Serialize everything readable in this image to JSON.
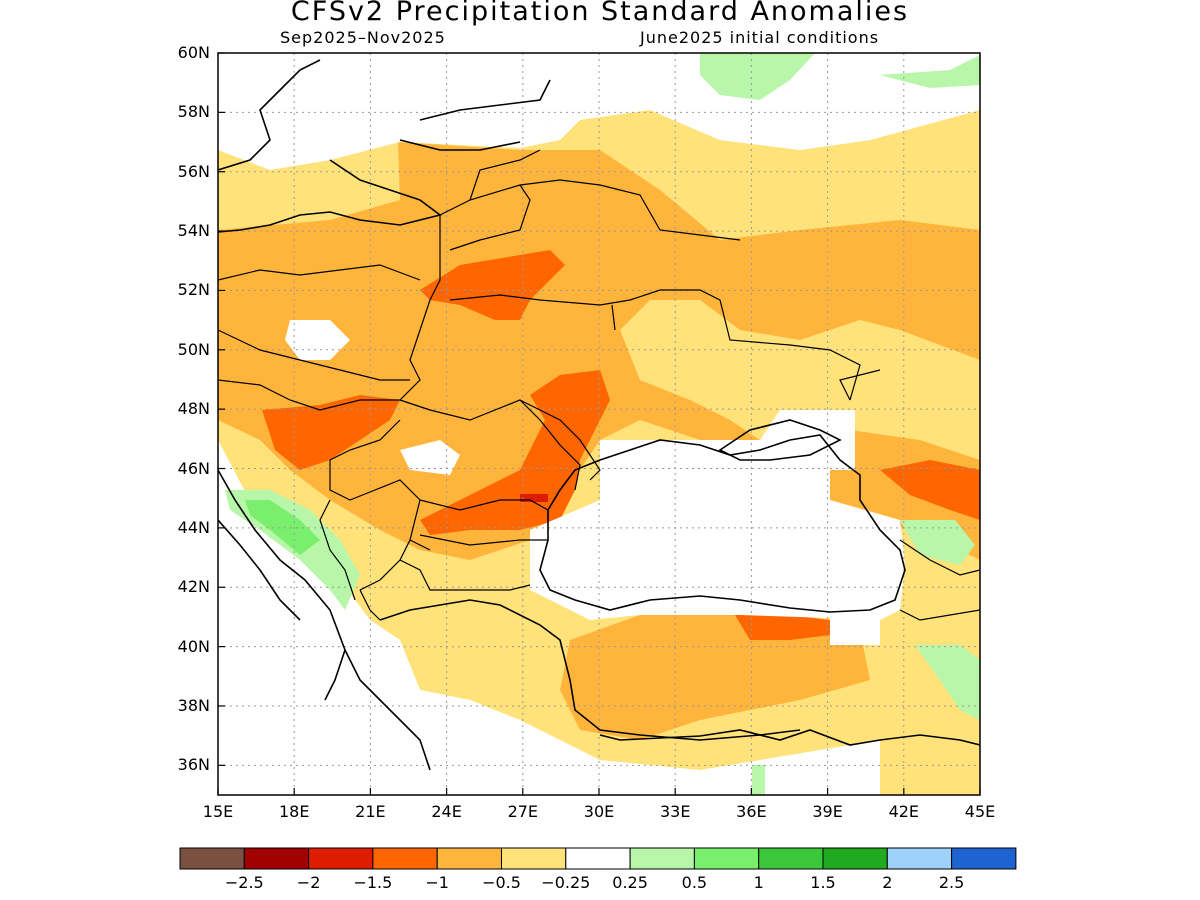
{
  "title": "CFSv2 Precipitation Standard Anomalies",
  "subtitle_period": "Sep2025–Nov2025",
  "subtitle_init": "June2025 initial conditions",
  "lat_labels": [
    "60N",
    "58N",
    "56N",
    "54N",
    "52N",
    "50N",
    "48N",
    "46N",
    "44N",
    "42N",
    "40N",
    "38N",
    "36N"
  ],
  "lon_labels": [
    "15E",
    "18E",
    "21E",
    "24E",
    "27E",
    "30E",
    "33E",
    "36E",
    "39E",
    "42E",
    "45E"
  ],
  "colorbar": {
    "labels": [
      "−2.5",
      "−2",
      "−1.5",
      "−1",
      "−0.5",
      "−0.25",
      "0.25",
      "0.5",
      "1",
      "1.5",
      "2",
      "2.5"
    ],
    "colors": [
      "#7a5040",
      "#a00000",
      "#dd1c00",
      "#ff6600",
      "#ffb43c",
      "#ffe27a",
      "#ffffff",
      "#b8f6aa",
      "#7aef6e",
      "#3ac83a",
      "#20aa20",
      "#9ed2fa",
      "#1e64d0"
    ]
  },
  "map_extent": {
    "lon": [
      15,
      45
    ],
    "lat": [
      35,
      60
    ]
  }
}
